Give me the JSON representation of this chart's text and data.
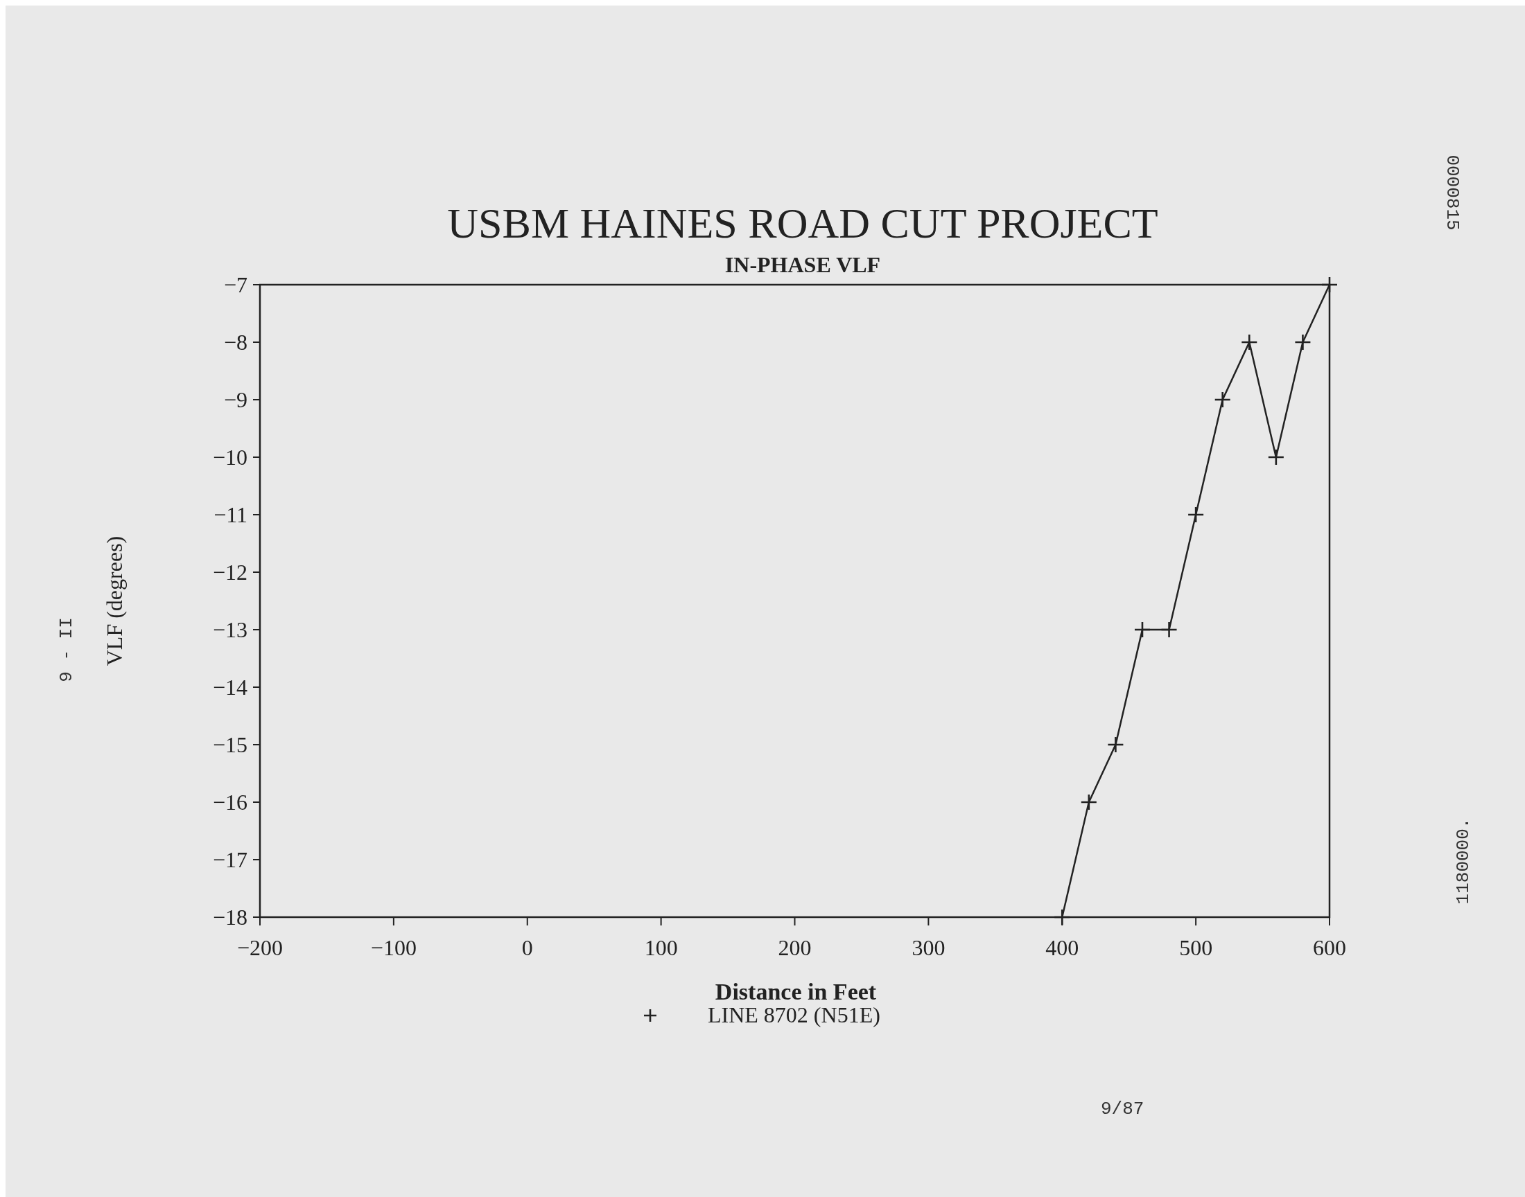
{
  "chart_data": {
    "type": "line",
    "title": "USBM HAINES ROAD CUT PROJECT",
    "subtitle": "IN-PHASE VLF",
    "xlabel": "Distance in Feet",
    "ylabel": "VLF (degrees)",
    "x": [
      400,
      420,
      440,
      460,
      480,
      500,
      520,
      540,
      560,
      580,
      600
    ],
    "series": [
      {
        "name": "LINE 8702 (N51E)",
        "color": "#222222",
        "values": [
          -18,
          -16,
          -15,
          -13,
          -13,
          -11,
          -9,
          -8,
          -10,
          -8,
          -7
        ]
      }
    ],
    "xlim": [
      -200,
      600
    ],
    "xticks": [
      -200,
      -100,
      0,
      100,
      200,
      300,
      400,
      500,
      600
    ],
    "ylim": [
      -18,
      -7
    ],
    "yticks": [
      -18,
      -17,
      -16,
      -15,
      -14,
      -13,
      -12,
      -11,
      -10,
      -9,
      -8,
      -7
    ],
    "grid": false,
    "legend": "bottom",
    "marker": "cross",
    "line_style": "solid",
    "annotations": [
      "9/87",
      "9 - II",
      "0000815",
      "1180000."
    ]
  }
}
